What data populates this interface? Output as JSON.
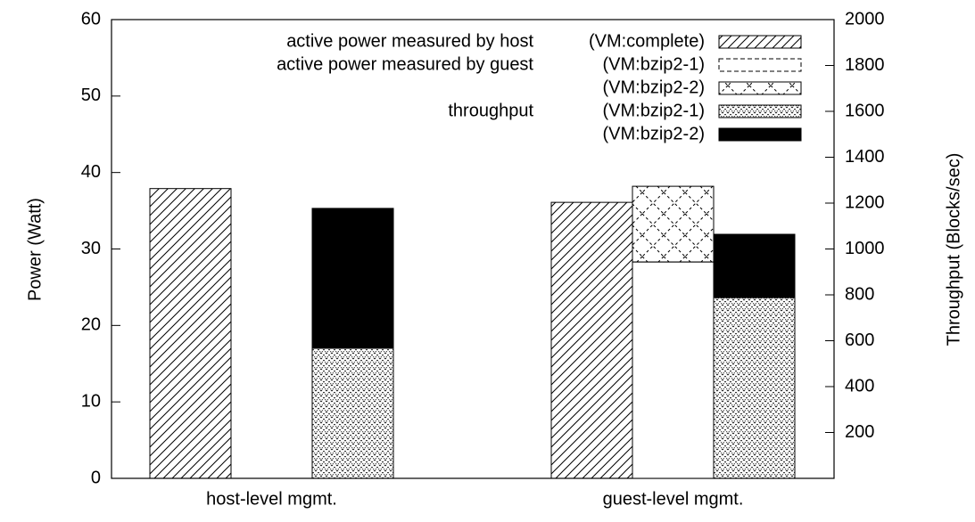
{
  "chart_data": {
    "type": "bar",
    "categories": [
      "host-level mgmt.",
      "guest-level mgmt."
    ],
    "ylabel": "Power (Watt)",
    "y2label": "Throughput (Blocks/sec)",
    "ylim": [
      0,
      60
    ],
    "yticks": [
      0,
      10,
      20,
      30,
      40,
      50,
      60
    ],
    "y2lim": [
      0,
      2000
    ],
    "y2ticks": [
      200,
      400,
      600,
      800,
      1000,
      1200,
      1400,
      1600,
      1800,
      2000
    ],
    "legend": "top-right",
    "series": [
      {
        "group": "active power measured by host",
        "name": "(VM:complete)",
        "pattern": "diagonal",
        "color": "#000000",
        "values": [
          37.9,
          36.1
        ]
      },
      {
        "group": "active power measured by guest",
        "name": "(VM:bzip2-1)",
        "pattern": "none",
        "color": "#ffffff",
        "values": [
          null,
          28.3
        ]
      },
      {
        "name": "(VM:bzip2-2)",
        "pattern": "crosshatch",
        "color": "#000000",
        "values": [
          null,
          9.9
        ]
      },
      {
        "group": "throughput",
        "name": "(VM:bzip2-1)",
        "pattern": "dots",
        "color": "#000000",
        "axis": "y2",
        "values": [
          567,
          788
        ]
      },
      {
        "name": "(VM:bzip2-2)",
        "pattern": "solid",
        "color": "#000000",
        "axis": "y2",
        "values": [
          610,
          276
        ]
      }
    ]
  }
}
